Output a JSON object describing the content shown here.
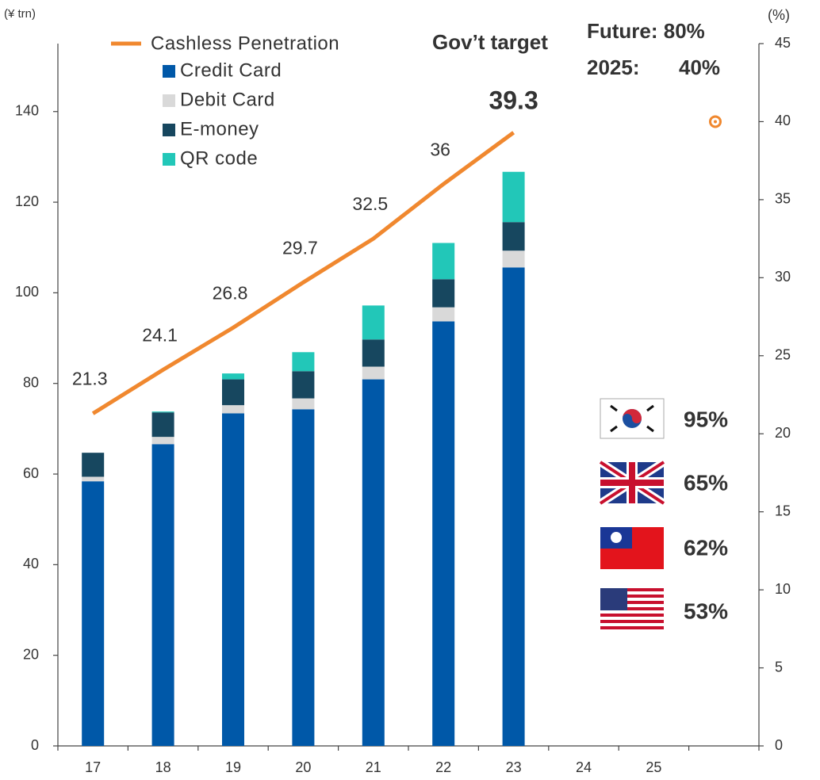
{
  "chart_data": {
    "type": "bar",
    "y_label": "(¥ trn)",
    "y2_label": "(%)",
    "categories": [
      "17",
      "18",
      "19",
      "20",
      "21",
      "22",
      "23",
      "24",
      "25",
      null
    ],
    "series": [
      {
        "name": "Credit Card",
        "color": "#0058a8",
        "values": [
          58.4,
          66.6,
          73.4,
          74.3,
          80.9,
          93.7,
          105.6,
          null,
          null,
          null
        ]
      },
      {
        "name": "Debit Card",
        "color": "#d9d9d9",
        "values": [
          1.0,
          1.6,
          1.8,
          2.4,
          2.8,
          3.1,
          3.7,
          null,
          null,
          null
        ]
      },
      {
        "name": "E-money",
        "color": "#17475f",
        "values": [
          5.3,
          5.4,
          5.7,
          6.0,
          6.0,
          6.2,
          6.3,
          null,
          null,
          null
        ]
      },
      {
        "name": "QR code",
        "color": "#22c7b8",
        "values": [
          0,
          0.2,
          1.3,
          4.2,
          7.5,
          8.0,
          11.1,
          null,
          null,
          null
        ]
      }
    ],
    "line": {
      "name": "Cashless Penetration",
      "color": "#f0882f",
      "axis": "y2",
      "values": [
        21.3,
        24.1,
        26.8,
        29.7,
        32.5,
        36.0,
        39.3,
        null,
        null,
        null
      ]
    },
    "ylim": [
      0,
      155
    ],
    "yticks": [
      0,
      20,
      40,
      60,
      80,
      100,
      120,
      140
    ],
    "y2lim": [
      0,
      45
    ],
    "y2ticks": [
      0,
      5,
      10,
      15,
      20,
      25,
      30,
      35,
      40,
      45
    ],
    "target_value": 40,
    "target_color": "#f0882f",
    "annotations": [
      "Gov’t target",
      "Future: 80%",
      "2025:",
      "40%"
    ],
    "comparisons": [
      {
        "value": 95,
        "label": "95%"
      },
      {
        "value": 65,
        "label": "65%"
      },
      {
        "value": 62,
        "label": "62%"
      },
      {
        "value": 53,
        "label": "53%"
      }
    ]
  }
}
